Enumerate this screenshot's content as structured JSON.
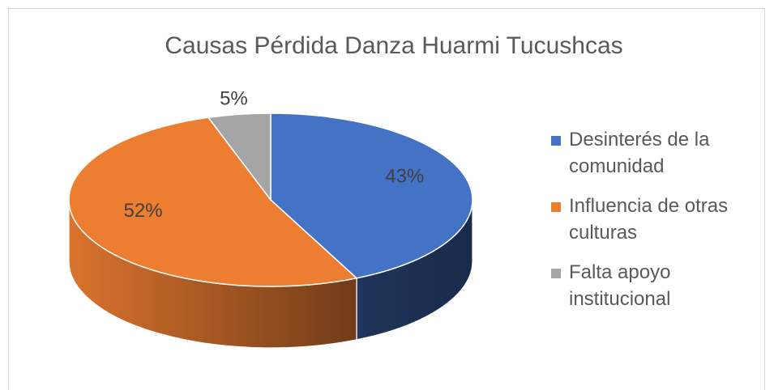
{
  "chart_data": {
    "type": "pie3d",
    "title": "Causas Pérdida Danza Huarmi Tucushcas",
    "categories": [
      "Desinterés de la comunidad",
      "Influencia de otras culturas",
      "Falta apoyo institucional"
    ],
    "values": [
      43,
      52,
      5
    ],
    "value_labels": [
      "43%",
      "52%",
      "5%"
    ],
    "colors": [
      "#4472c4",
      "#ed7d31",
      "#a5a5a5"
    ],
    "legend": "right"
  }
}
